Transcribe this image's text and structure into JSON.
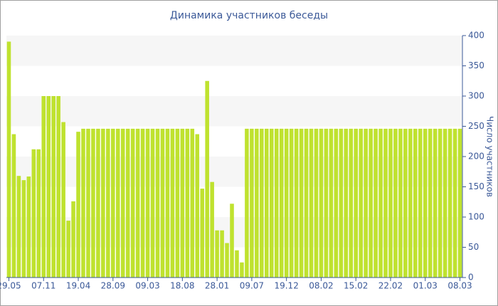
{
  "chart_data": {
    "type": "bar",
    "title": "Динамика участников беседы",
    "y_label": "Число участников",
    "categories": [
      "29.05",
      null,
      null,
      null,
      null,
      null,
      null,
      "07.11",
      null,
      null,
      null,
      null,
      null,
      null,
      "19.04",
      null,
      null,
      null,
      null,
      null,
      null,
      "28.09",
      null,
      null,
      null,
      null,
      null,
      null,
      "09.03",
      null,
      null,
      null,
      null,
      null,
      null,
      "18.08",
      null,
      null,
      null,
      null,
      null,
      null,
      "28.01",
      null,
      null,
      null,
      null,
      null,
      null,
      "09.07",
      null,
      null,
      null,
      null,
      null,
      null,
      "19.12",
      null,
      null,
      null,
      null,
      null,
      null,
      "08.02",
      null,
      null,
      null,
      null,
      null,
      null,
      "15.02",
      null,
      null,
      null,
      null,
      null,
      null,
      "22.02",
      null,
      null,
      null,
      null,
      null,
      null,
      "01.03",
      null,
      null,
      null,
      null,
      null,
      null,
      "08.03"
    ],
    "values": [
      390,
      237,
      168,
      161,
      167,
      212,
      212,
      300,
      300,
      300,
      300,
      257,
      94,
      126,
      241,
      246,
      246,
      246,
      246,
      246,
      246,
      246,
      246,
      246,
      246,
      246,
      246,
      246,
      246,
      246,
      246,
      246,
      246,
      246,
      246,
      246,
      246,
      246,
      237,
      147,
      325,
      158,
      78,
      78,
      57,
      122,
      45,
      25,
      246,
      246,
      246,
      246,
      246,
      246,
      246,
      246,
      246,
      246,
      246,
      246,
      246,
      246,
      246,
      246,
      246,
      246,
      246,
      246,
      246,
      246,
      246,
      246,
      246,
      246,
      246,
      246,
      246,
      246,
      246,
      246,
      246,
      246,
      246,
      246,
      246,
      246,
      246,
      246,
      246,
      246,
      246,
      246
    ],
    "color": "#bfe22f",
    "ylim": [
      0,
      400
    ],
    "yticks": [
      0,
      50,
      100,
      150,
      200,
      250,
      300,
      350,
      400
    ],
    "grid": true
  }
}
